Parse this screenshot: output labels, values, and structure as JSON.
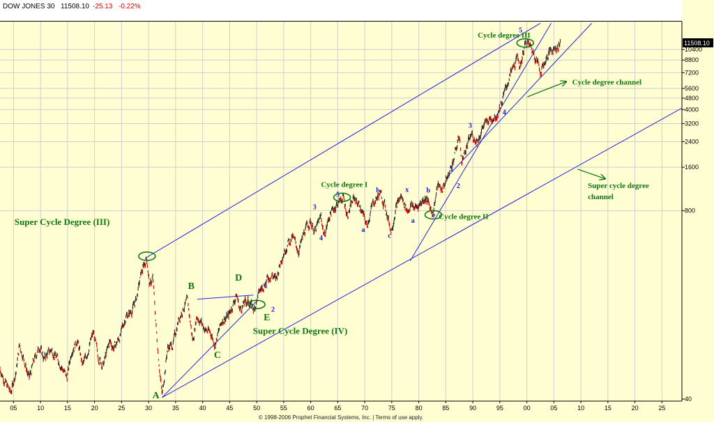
{
  "header": {
    "symbol": "DOW JONES 30",
    "last": "11508.10",
    "change": "-25.13",
    "percent": "-0.22%"
  },
  "footer": {
    "text": "© 1998-2006 Prophet Financial Systems, Inc. | Terms of use apply."
  },
  "colors": {
    "background": "#fefed2",
    "up_bar": "#222222",
    "down_bar": "#cc0000",
    "channel": "#2323e6",
    "annotation_green": "#117711",
    "annotation_blue": "#1515d8"
  },
  "chart_data": {
    "type": "line",
    "title": "",
    "y_scale": "log",
    "ylim": [
      40,
      16000
    ],
    "xlim": [
      1902.5,
      2028.7
    ],
    "last_price_label": "11508.10",
    "x_ticks": [
      {
        "year": 1905,
        "label": "05"
      },
      {
        "year": 1910,
        "label": "10"
      },
      {
        "year": 1915,
        "label": "15"
      },
      {
        "year": 1920,
        "label": "20"
      },
      {
        "year": 1925,
        "label": "25"
      },
      {
        "year": 1930,
        "label": "30"
      },
      {
        "year": 1935,
        "label": "35"
      },
      {
        "year": 1940,
        "label": "40"
      },
      {
        "year": 1945,
        "label": "45"
      },
      {
        "year": 1950,
        "label": "50"
      },
      {
        "year": 1955,
        "label": "55"
      },
      {
        "year": 1960,
        "label": "60"
      },
      {
        "year": 1965,
        "label": "65"
      },
      {
        "year": 1970,
        "label": "70"
      },
      {
        "year": 1975,
        "label": "75"
      },
      {
        "year": 1980,
        "label": "80"
      },
      {
        "year": 1985,
        "label": "85"
      },
      {
        "year": 1990,
        "label": "90"
      },
      {
        "year": 1995,
        "label": "95"
      },
      {
        "year": 2000,
        "label": "00"
      },
      {
        "year": 2005,
        "label": "05"
      },
      {
        "year": 2010,
        "label": "10"
      },
      {
        "year": 2015,
        "label": "15"
      },
      {
        "year": 2020,
        "label": "20"
      },
      {
        "year": 2025,
        "label": "25"
      }
    ],
    "y_ticks": [
      {
        "value": 10400,
        "label": "10400"
      },
      {
        "value": 8800,
        "label": "8800"
      },
      {
        "value": 7200,
        "label": "7200"
      },
      {
        "value": 5600,
        "label": "5600"
      },
      {
        "value": 4800,
        "label": "4800"
      },
      {
        "value": 4000,
        "label": "4000"
      },
      {
        "value": 3200,
        "label": "3200"
      },
      {
        "value": 2400,
        "label": "2400"
      },
      {
        "value": 1600,
        "label": "1600"
      },
      {
        "value": 800,
        "label": "800"
      },
      {
        "value": 40,
        "label": "40"
      }
    ],
    "series": [
      {
        "values": [
          [
            1902.5,
            65
          ],
          [
            1903.5,
            52
          ],
          [
            1904.5,
            44
          ],
          [
            1905.5,
            63
          ],
          [
            1906.1,
            95
          ],
          [
            1907.0,
            74
          ],
          [
            1907.9,
            55
          ],
          [
            1908.7,
            72
          ],
          [
            1909.8,
            93
          ],
          [
            1910.6,
            76
          ],
          [
            1912.0,
            88
          ],
          [
            1913.5,
            72
          ],
          [
            1914.9,
            56
          ],
          [
            1915.8,
            88
          ],
          [
            1916.8,
            102
          ],
          [
            1917.8,
            68
          ],
          [
            1918.6,
            82
          ],
          [
            1919.8,
            115
          ],
          [
            1920.6,
            80
          ],
          [
            1921.6,
            68
          ],
          [
            1922.8,
            100
          ],
          [
            1923.6,
            90
          ],
          [
            1924.8,
            110
          ],
          [
            1925.8,
            150
          ],
          [
            1926.8,
            160
          ],
          [
            1927.8,
            200
          ],
          [
            1928.6,
            290
          ],
          [
            1929.65,
            381
          ],
          [
            1930.2,
            240
          ],
          [
            1930.8,
            275
          ],
          [
            1931.5,
            110
          ],
          [
            1932.5,
            42
          ],
          [
            1933.5,
            90
          ],
          [
            1934.5,
            95
          ],
          [
            1935.5,
            140
          ],
          [
            1936.6,
            175
          ],
          [
            1937.2,
            190
          ],
          [
            1938.2,
            100
          ],
          [
            1938.9,
            150
          ],
          [
            1939.5,
            140
          ],
          [
            1940.5,
            120
          ],
          [
            1941.5,
            115
          ],
          [
            1942.3,
            95
          ],
          [
            1943.6,
            140
          ],
          [
            1944.8,
            150
          ],
          [
            1946.3,
            210
          ],
          [
            1946.9,
            165
          ],
          [
            1947.8,
            185
          ],
          [
            1948.6,
            190
          ],
          [
            1949.5,
            165
          ],
          [
            1950.5,
            220
          ],
          [
            1951.8,
            265
          ],
          [
            1952.8,
            290
          ],
          [
            1953.6,
            265
          ],
          [
            1954.6,
            380
          ],
          [
            1955.8,
            480
          ],
          [
            1956.7,
            520
          ],
          [
            1957.8,
            420
          ],
          [
            1958.9,
            580
          ],
          [
            1959.9,
            680
          ],
          [
            1960.8,
            570
          ],
          [
            1961.9,
            730
          ],
          [
            1962.5,
            540
          ],
          [
            1963.6,
            760
          ],
          [
            1964.8,
            880
          ],
          [
            1966.0,
            995
          ],
          [
            1966.8,
            745
          ],
          [
            1968.0,
            980
          ],
          [
            1969.0,
            880
          ],
          [
            1970.4,
            630
          ],
          [
            1971.5,
            900
          ],
          [
            1972.9,
            1050
          ],
          [
            1973.8,
            850
          ],
          [
            1974.9,
            580
          ],
          [
            1975.8,
            850
          ],
          [
            1976.7,
            1010
          ],
          [
            1977.9,
            800
          ],
          [
            1978.6,
            870
          ],
          [
            1979.6,
            840
          ],
          [
            1980.5,
            920
          ],
          [
            1981.2,
            990
          ],
          [
            1982.6,
            780
          ],
          [
            1983.5,
            1180
          ],
          [
            1984.3,
            1130
          ],
          [
            1985.5,
            1400
          ],
          [
            1986.5,
            1850
          ],
          [
            1987.6,
            2700
          ],
          [
            1987.85,
            1740
          ],
          [
            1988.8,
            2150
          ],
          [
            1989.8,
            2700
          ],
          [
            1990.8,
            2400
          ],
          [
            1991.8,
            3000
          ],
          [
            1993.0,
            3400
          ],
          [
            1994.5,
            3700
          ],
          [
            1995.6,
            4800
          ],
          [
            1996.6,
            6400
          ],
          [
            1997.6,
            7900
          ],
          [
            1998.5,
            9300
          ],
          [
            1998.7,
            7600
          ],
          [
            1999.5,
            10800
          ],
          [
            2000.0,
            11700
          ],
          [
            2000.9,
            10500
          ],
          [
            2001.6,
            9300
          ],
          [
            2002.6,
            7400
          ],
          [
            2003.5,
            8800
          ],
          [
            2004.5,
            10400
          ],
          [
            2005.8,
            10900
          ],
          [
            2006.2,
            11508
          ]
        ]
      }
    ],
    "channels": [
      {
        "from": [
          1932.5,
          41
        ],
        "to": [
          2028.7,
          4100
        ]
      },
      {
        "from": [
          1932.5,
          41
        ],
        "to": [
          1950.0,
          190
        ]
      },
      {
        "from": [
          1929.65,
          381
        ],
        "to": [
          2002.5,
          15800
        ]
      },
      {
        "from": [
          1939.0,
          196
        ],
        "to": [
          1949.4,
          209
        ]
      },
      {
        "from": [
          1978.4,
          360
        ],
        "to": [
          2004.5,
          15800
        ]
      },
      {
        "from": [
          1985.0,
          1340
        ],
        "to": [
          2012.0,
          15800
        ]
      }
    ],
    "arrows": [
      {
        "from": [
          2000.1,
          4900
        ],
        "to": [
          2007.3,
          6250
        ]
      },
      {
        "from": [
          2009.4,
          1550
        ],
        "to": [
          2014.5,
          1330
        ]
      }
    ],
    "ellipses": [
      {
        "center": [
          1929.7,
          388
        ],
        "label": "Super Cycle Degree (III) top"
      },
      {
        "center": [
          1950.0,
          180
        ],
        "label": "E"
      },
      {
        "center": [
          1965.8,
          990
        ],
        "label": "Cycle degree I"
      },
      {
        "center": [
          1982.7,
          750
        ],
        "label": "c"
      },
      {
        "center": [
          1999.7,
          11550
        ],
        "label": "Cycle degree III top"
      }
    ],
    "annotations": {
      "green": [
        {
          "text": "Super Cycle Degree (III)",
          "at": [
            1905.2,
            640
          ],
          "size": 13
        },
        {
          "text": "Super Cycle Degree (IV)",
          "at": [
            1949.3,
            113
          ],
          "size": 13
        },
        {
          "text": "A",
          "at": [
            1930.7,
            40.5
          ],
          "size": 14
        },
        {
          "text": "B",
          "at": [
            1937.3,
            230
          ],
          "size": 14
        },
        {
          "text": "C",
          "at": [
            1942.1,
            77
          ],
          "size": 14
        },
        {
          "text": "D",
          "at": [
            1946.0,
            263
          ],
          "size": 14
        },
        {
          "text": "E",
          "at": [
            1951.3,
            140
          ],
          "size": 14
        },
        {
          "text": "Cycle degree I",
          "at": [
            1961.9,
            1170
          ],
          "size": 11
        },
        {
          "text": "Cycle degree II",
          "at": [
            1983.7,
            700
          ],
          "size": 11
        },
        {
          "text": "Cycle degree III",
          "at": [
            1990.9,
            12600
          ],
          "size": 11
        },
        {
          "text": "Cycle degree channel",
          "at": [
            2008.4,
            5950
          ],
          "size": 11
        },
        {
          "text": "Super cycle degree",
          "at": [
            2011.3,
            1150
          ],
          "size": 11
        },
        {
          "text": "channel",
          "at": [
            2011.3,
            960
          ],
          "size": 11
        }
      ],
      "blue": [
        {
          "text": "1",
          "at": [
            1951.4,
            234
          ]
        },
        {
          "text": "2",
          "at": [
            1952.7,
            161
          ]
        },
        {
          "text": "3",
          "at": [
            1960.4,
            820
          ]
        },
        {
          "text": "4",
          "at": [
            1961.6,
            500
          ]
        },
        {
          "text": "5",
          "at": [
            1964.7,
            1000
          ]
        },
        {
          "text": "a",
          "at": [
            1969.4,
            570
          ]
        },
        {
          "text": "b",
          "at": [
            1972.1,
            1070
          ]
        },
        {
          "text": "c",
          "at": [
            1974.3,
            520
          ]
        },
        {
          "text": "x",
          "at": [
            1977.5,
            1080
          ]
        },
        {
          "text": "a",
          "at": [
            1978.6,
            660
          ]
        },
        {
          "text": "b",
          "at": [
            1981.4,
            1070
          ]
        },
        {
          "text": "e",
          "at": [
            1982.5,
            720
          ]
        },
        {
          "text": "1",
          "at": [
            1985.8,
            1500
          ]
        },
        {
          "text": "2",
          "at": [
            1987.0,
            1150
          ]
        },
        {
          "text": "3",
          "at": [
            1989.2,
            3000
          ]
        },
        {
          "text": "4",
          "at": [
            1995.5,
            3700
          ]
        },
        {
          "text": "5",
          "at": [
            1998.5,
            13700
          ]
        }
      ]
    }
  }
}
